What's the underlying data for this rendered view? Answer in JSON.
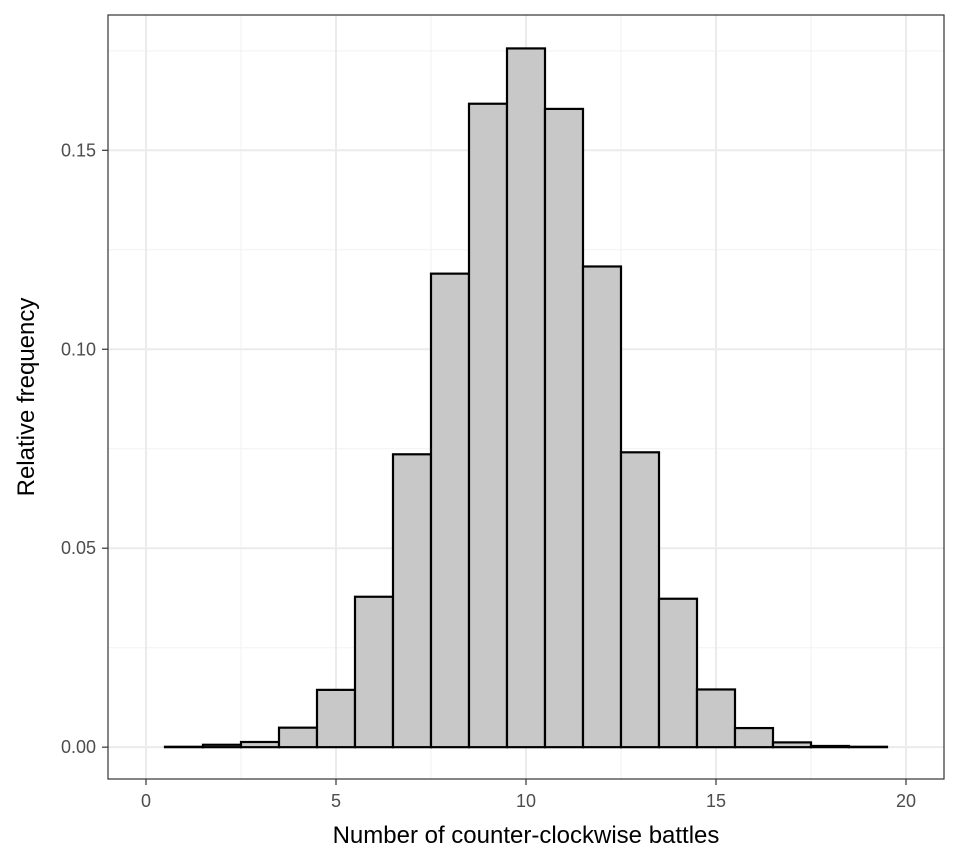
{
  "chart_data": {
    "type": "bar",
    "title": "",
    "xlabel": "Number of counter-clockwise battles",
    "ylabel": "Relative frequency",
    "xlim": [
      -1,
      21
    ],
    "ylim": [
      -0.008,
      0.184
    ],
    "x_ticks": [
      0,
      5,
      10,
      15,
      20
    ],
    "x_tick_labels": [
      "0",
      "5",
      "10",
      "15",
      "20"
    ],
    "y_ticks": [
      0,
      0.05,
      0.1,
      0.15
    ],
    "y_tick_labels": [
      "0.00",
      "0.05",
      "0.10",
      "0.15"
    ],
    "grid": true,
    "bin_width": 1,
    "x": [
      1,
      2,
      3,
      4,
      5,
      6,
      7,
      8,
      9,
      10,
      11,
      12,
      13,
      14,
      15,
      16,
      17,
      18,
      19
    ],
    "values": [
      0.0001,
      0.0006,
      0.0013,
      0.0049,
      0.0144,
      0.0378,
      0.0736,
      0.119,
      0.1617,
      0.1756,
      0.1604,
      0.1208,
      0.0741,
      0.0373,
      0.0145,
      0.0048,
      0.0012,
      0.0003,
      0.0001
    ],
    "bar_fill": "#c8c8c8",
    "bar_outline": "#000000"
  }
}
